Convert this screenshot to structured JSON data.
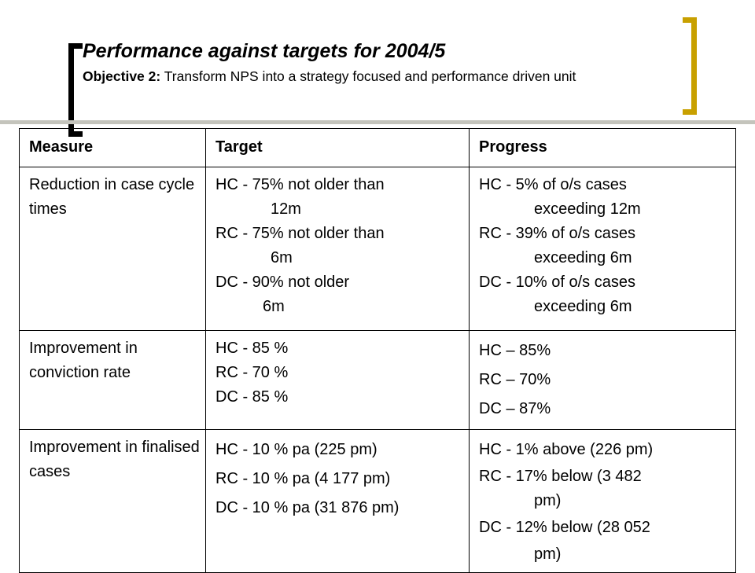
{
  "title": "Performance against targets for 2004/5",
  "subtitle": {
    "label": "Objective 2:",
    "text": " Transform NPS into a strategy focused and performance driven unit"
  },
  "table": {
    "headers": [
      "Measure",
      "Target",
      "Progress"
    ],
    "rows": [
      {
        "measure": "Reduction in case cycle times",
        "target": [
          {
            "main": "HC - 75% not older than",
            "cont": "12m"
          },
          {
            "main": "RC - 75% not older than",
            "cont": "6m"
          },
          {
            "main": "DC - 90% not older",
            "cont": "6m"
          }
        ],
        "progress": [
          {
            "main": "HC - 5% of o/s cases",
            "cont": "exceeding 12m"
          },
          {
            "main": "RC - 39% of o/s cases",
            "cont": "exceeding 6m"
          },
          {
            "main": "DC - 10% of o/s cases",
            "cont": "exceeding 6m"
          }
        ]
      },
      {
        "measure": "Improvement in conviction rate",
        "target": [
          "HC - 85 %",
          "RC - 70 %",
          "DC - 85 %"
        ],
        "progress": [
          "HC – 85%",
          "RC – 70%",
          "DC – 87%"
        ]
      },
      {
        "measure": "Improvement  in finalised cases",
        "target": [
          "HC - 10 % pa (225 pm)",
          "RC - 10 % pa (4 177 pm)",
          "DC - 10 % pa (31 876 pm)"
        ],
        "progress": [
          {
            "main": "HC - 1% above (226 pm)",
            "cont": ""
          },
          {
            "main": "RC - 17% below (3 482",
            "cont": "pm)"
          },
          {
            "main": "DC - 12% below (28 052",
            "cont": "pm)"
          }
        ]
      }
    ]
  }
}
